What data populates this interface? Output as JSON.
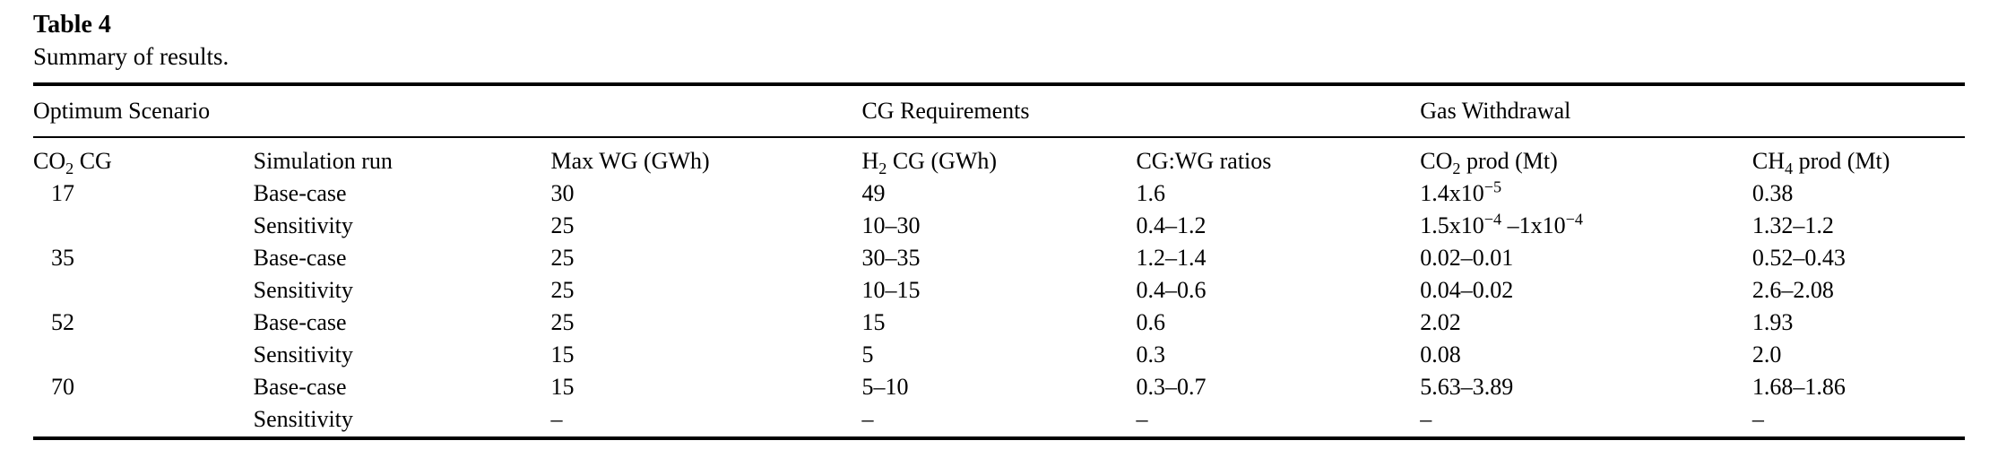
{
  "page": {
    "background_color": "#ffffff",
    "text_color": "#000000",
    "rule_color": "#000000"
  },
  "table": {
    "label": "Table 4",
    "caption": "Summary of results.",
    "group_headers": [
      {
        "label": "Optimum Scenario",
        "span": 3
      },
      {
        "label": "CG Requirements",
        "span": 2
      },
      {
        "label": "Gas Withdrawal",
        "span": 2
      }
    ],
    "columns": [
      [
        {
          "t": "CO"
        },
        {
          "t": "2",
          "s": "sub"
        },
        {
          "t": " CG"
        }
      ],
      "Simulation run",
      "Max WG (GWh)",
      [
        {
          "t": "H"
        },
        {
          "t": "2",
          "s": "sub"
        },
        {
          "t": " CG (GWh)"
        }
      ],
      "CG:WG ratios",
      [
        {
          "t": "CO"
        },
        {
          "t": "2",
          "s": "sub"
        },
        {
          "t": " prod (Mt)"
        }
      ],
      [
        {
          "t": "CH"
        },
        {
          "t": "4",
          "s": "sub"
        },
        {
          "t": " prod (Mt)"
        }
      ]
    ],
    "rows": [
      [
        "17",
        "Base-case",
        "30",
        "49",
        "1.6",
        [
          {
            "t": "1.4x10"
          },
          {
            "t": "−5",
            "s": "sup"
          }
        ],
        "0.38"
      ],
      [
        "",
        "Sensitivity",
        "25",
        "10–30",
        "0.4–1.2",
        [
          {
            "t": "1.5x10"
          },
          {
            "t": "−4",
            "s": "sup"
          },
          {
            "t": " –1x10"
          },
          {
            "t": "−4",
            "s": "sup"
          }
        ],
        "1.32–1.2"
      ],
      [
        "35",
        "Base-case",
        "25",
        "30–35",
        "1.2–1.4",
        "0.02–0.01",
        "0.52–0.43"
      ],
      [
        "",
        "Sensitivity",
        "25",
        "10–15",
        "0.4–0.6",
        "0.04–0.02",
        "2.6–2.08"
      ],
      [
        "52",
        "Base-case",
        "25",
        "15",
        "0.6",
        "2.02",
        "1.93"
      ],
      [
        "",
        "Sensitivity",
        "15",
        "5",
        "0.3",
        "0.08",
        "2.0"
      ],
      [
        "70",
        "Base-case",
        "15",
        "5–10",
        "0.3–0.7",
        "5.63–3.89",
        "1.68–1.86"
      ],
      [
        "",
        "Sensitivity",
        "–",
        "–",
        "–",
        "–",
        "–"
      ]
    ]
  }
}
